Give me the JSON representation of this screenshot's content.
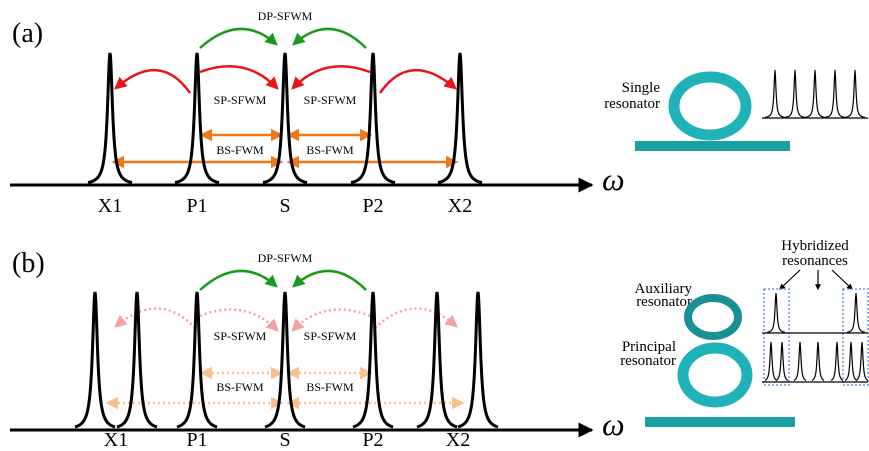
{
  "panel_a": {
    "label": "(a)",
    "dp": "DP-SFWM",
    "sp": [
      "SP-SFWM",
      "SP-SFWM"
    ],
    "bs": [
      "BS-FWM",
      "BS-FWM"
    ],
    "modes": [
      "X1",
      "P1",
      "S",
      "P2",
      "X2"
    ],
    "axis": "ω",
    "resonator": [
      "Single",
      "resonator"
    ]
  },
  "panel_b": {
    "label": "(b)",
    "dp": "DP-SFWM",
    "sp": [
      "SP-SFWM",
      "SP-SFWM"
    ],
    "bs": [
      "BS-FWM",
      "BS-FWM"
    ],
    "modes": [
      "X1",
      "P1",
      "S",
      "P2",
      "X2"
    ],
    "axis": "ω",
    "auxiliary": [
      "Auxiliary",
      "resonator"
    ],
    "principal": [
      "Principal",
      "resonator"
    ],
    "hybridized": [
      "Hybridized",
      "resonances"
    ]
  }
}
